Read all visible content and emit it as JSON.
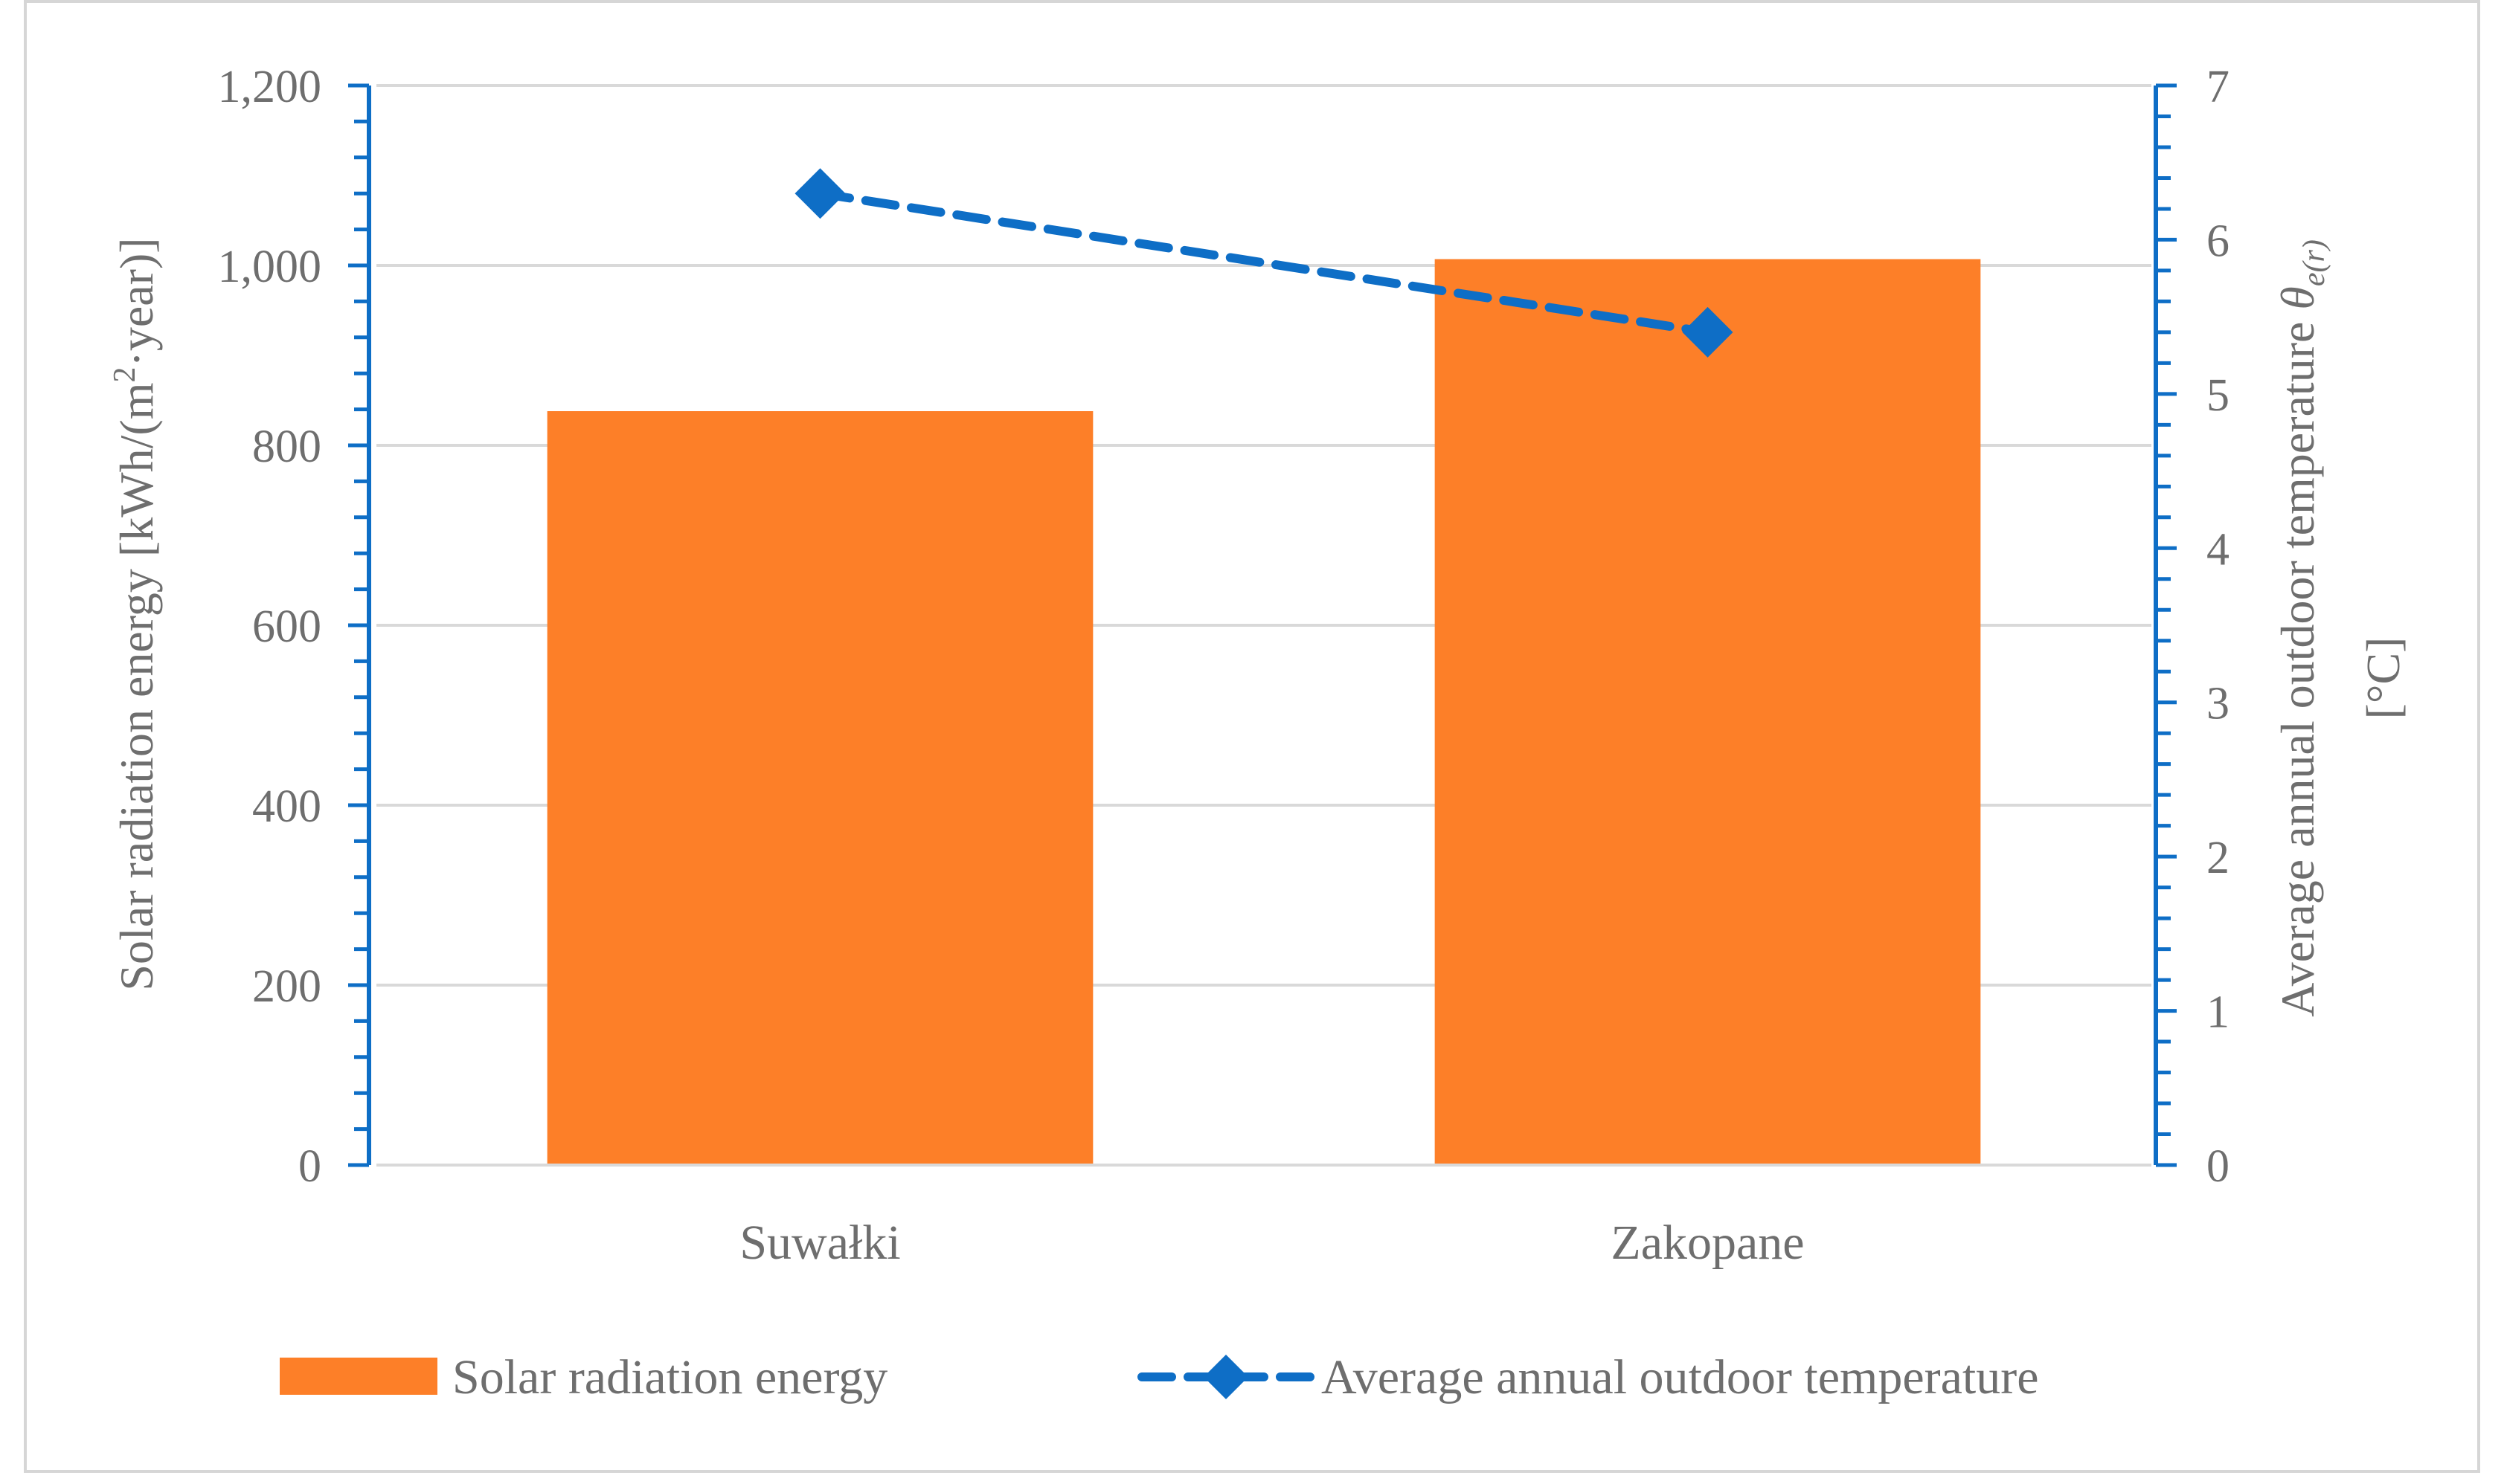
{
  "chart_data": {
    "type": "bar",
    "categories": [
      "Suwałki",
      "Zakopane"
    ],
    "series": [
      {
        "name": "Solar radiation energy",
        "kind": "bar",
        "axis": "left",
        "values": [
          838,
          1007
        ],
        "color": "#fd7f28"
      },
      {
        "name": "Average annual outdoor temperature",
        "kind": "line",
        "axis": "right",
        "values": [
          6.3,
          5.4
        ],
        "color": "#0e6ec6",
        "line_style": "dashed",
        "marker": "diamond"
      }
    ],
    "left_axis": {
      "label_main": "Solar radiation energy  [kWh/(m",
      "label_sup": "2",
      "label_tail": "·year)]",
      "range": [
        0,
        1200
      ],
      "major_step": 200,
      "minor_step": 40,
      "tick_labels": [
        "0",
        "200",
        "400",
        "600",
        "800",
        "1,000",
        "1,200"
      ],
      "color": "#0e6ec6"
    },
    "right_axis": {
      "label_line1_main": "Average annual outdoor temperature ",
      "label_line1_symbol": "θ",
      "label_line1_sub": "e(r)",
      "label_line2": "[°C]",
      "range": [
        0,
        7
      ],
      "major_step": 1,
      "minor_step": 0.2,
      "tick_labels": [
        "0",
        "1",
        "2",
        "3",
        "4",
        "5",
        "6",
        "7"
      ],
      "color": "#0e6ec6"
    },
    "gridlines": true,
    "legend_position": "bottom",
    "legend": [
      "Solar radiation energy",
      "Average annual outdoor temperature"
    ]
  }
}
